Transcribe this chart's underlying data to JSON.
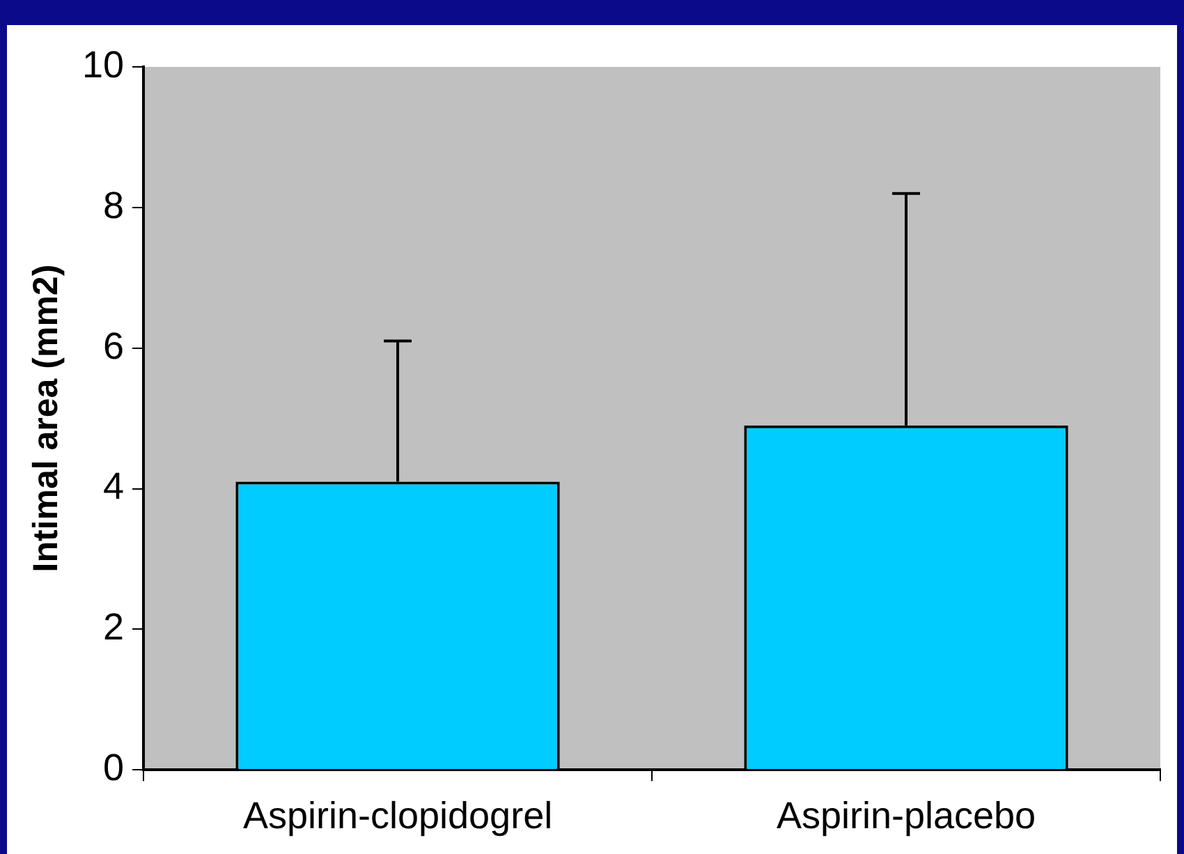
{
  "chart_data": {
    "type": "bar",
    "ylabel": "Intimal area (mm2)",
    "categories": [
      "Aspirin-clopidogrel",
      "Aspirin-placebo"
    ],
    "values": [
      4.1,
      4.9
    ],
    "color": "#00ccff",
    "errors": [
      [
        4.1,
        6.1
      ],
      [
        4.9,
        8.2
      ]
    ],
    "ylim": [
      0,
      10
    ],
    "yticks": [
      0,
      2,
      4,
      6,
      8,
      10
    ],
    "legend": false
  }
}
